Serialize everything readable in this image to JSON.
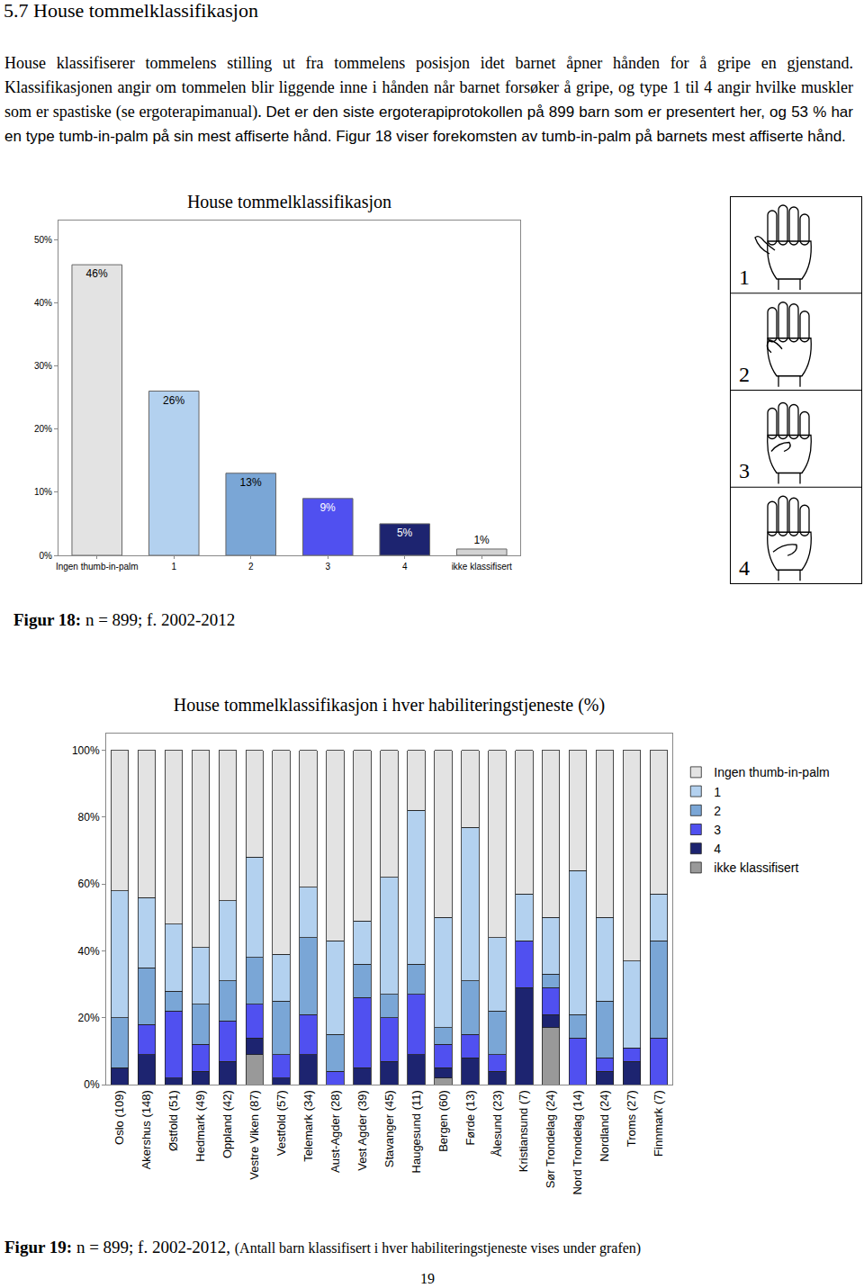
{
  "heading": "5.7 House tommelklassifikasjon",
  "paragraph": [
    "House klassifiserer tommelens stilling ut fra tommelens posisjon idet barnet åpner hånden for å gripe en gjenstand. Klassifikasjonen angir om tommelen blir liggende inne i hånden når barnet forsøker å gripe, og type 1 til 4 angir hvilke muskler som er spastiske (se ergoterapimanual).",
    "Det er den siste ergoterapiprotokollen på 899 barn som er presentert her, og 53 % har en type tumb-in-palm på sin mest affiserte hånd. Figur 18 viser forekomsten av tumb-in-palm på barnets mest affiserte hånd."
  ],
  "hand_labels": [
    "1",
    "2",
    "3",
    "4"
  ],
  "captions": [
    {
      "label": "Figur 18:",
      "text": "n = 899; f. 2002-2012"
    },
    {
      "label": "Figur 19:",
      "text": "n = 899; f. 2002-2012,",
      "note": "(Antall barn klassifisert i hver habiliteringstjeneste vises under grafen)"
    }
  ],
  "page_number": "19",
  "chart_data": [
    {
      "type": "bar",
      "title": "House tommelklassifikasjon",
      "categories": [
        "Ingen thumb-in-palm",
        "1",
        "2",
        "3",
        "4",
        "ikke klassifisert"
      ],
      "values": [
        46,
        26,
        13,
        9,
        5,
        1
      ],
      "value_labels": [
        "46%",
        "26%",
        "13%",
        "9%",
        "5%",
        "1%"
      ],
      "colors": [
        "#e3e3e3",
        "#b3d1ef",
        "#7aa6d6",
        "#5050f0",
        "#1d2470",
        "#d3d3d3"
      ],
      "ylim": [
        0,
        53
      ],
      "yticks": [
        {
          "value": 0,
          "label": "0%"
        },
        {
          "value": 10,
          "label": "10%"
        },
        {
          "value": 20,
          "label": "20%"
        },
        {
          "value": 30,
          "label": "30%"
        },
        {
          "value": 40,
          "label": "40%"
        },
        {
          "value": 50,
          "label": "50%"
        }
      ],
      "data_labels": true,
      "grid": false
    },
    {
      "type": "bar",
      "stacked": true,
      "title": "House tommelklassifikasjon i hver habiliteringstjeneste (%)",
      "categories": [
        "Oslo (109)",
        "Akershus (148)",
        "Østfold (51)",
        "Hedmark (49)",
        "Oppland (42)",
        "Vestre Viken (87)",
        "Vestfold (57)",
        "Telemark (34)",
        "Aust-Agder (28)",
        "Vest Agder (39)",
        "Stavanger (45)",
        "Haugesund (11)",
        "Bergen (60)",
        "Førde (13)",
        "Ålesund (23)",
        "Kristiansund (7)",
        "Sør Trondelag (24)",
        "Nord Trondelag (14)",
        "Nordland (24)",
        "Troms (27)",
        "Finnmark (7)"
      ],
      "series": [
        {
          "name": "ikke klassifisert",
          "color": "#999999",
          "values": [
            0,
            0,
            0,
            0,
            0,
            9,
            0,
            0,
            0,
            0,
            0,
            0,
            2,
            0,
            0,
            0,
            17,
            0,
            0,
            0,
            0
          ]
        },
        {
          "name": "4",
          "color": "#1d2470",
          "values": [
            5,
            9,
            2,
            4,
            7,
            5,
            2,
            9,
            0,
            5,
            7,
            9,
            3,
            8,
            4,
            29,
            4,
            0,
            4,
            7,
            0
          ]
        },
        {
          "name": "3",
          "color": "#5050f0",
          "values": [
            0,
            9,
            20,
            8,
            12,
            10,
            7,
            12,
            4,
            21,
            13,
            18,
            7,
            7,
            5,
            14,
            8,
            14,
            4,
            4,
            14
          ]
        },
        {
          "name": "2",
          "color": "#7aa6d6",
          "values": [
            15,
            17,
            6,
            12,
            12,
            14,
            16,
            23,
            11,
            10,
            7,
            9,
            5,
            16,
            13,
            0,
            4,
            7,
            17,
            0,
            29
          ]
        },
        {
          "name": "1",
          "color": "#b3d1ef",
          "values": [
            38,
            21,
            20,
            17,
            24,
            30,
            14,
            15,
            28,
            13,
            35,
            46,
            33,
            46,
            22,
            14,
            17,
            43,
            25,
            26,
            14
          ]
        },
        {
          "name": "Ingen thumb-in-palm",
          "color": "#e3e3e3",
          "values": [
            42,
            44,
            52,
            59,
            45,
            32,
            61,
            41,
            57,
            51,
            38,
            18,
            50,
            23,
            56,
            43,
            50,
            36,
            50,
            63,
            43
          ]
        }
      ],
      "ylim": [
        0,
        105
      ],
      "yticks": [
        {
          "value": 0,
          "label": "0%"
        },
        {
          "value": 20,
          "label": "20%"
        },
        {
          "value": 40,
          "label": "40%"
        },
        {
          "value": 60,
          "label": "60%"
        },
        {
          "value": 80,
          "label": "80%"
        },
        {
          "value": 100,
          "label": "100%"
        }
      ],
      "legend": "right",
      "grid": false
    }
  ]
}
